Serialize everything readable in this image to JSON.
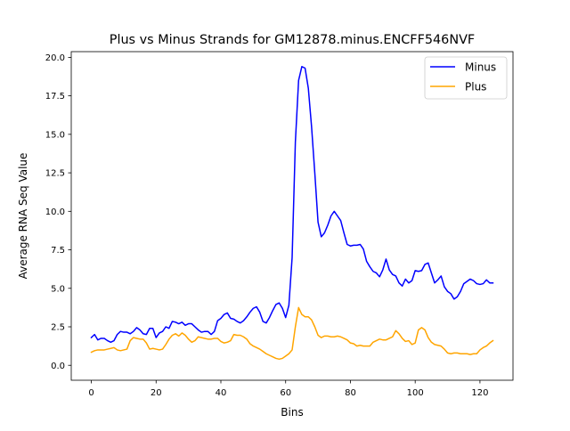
{
  "chart_data": {
    "type": "line",
    "title": "Plus vs Minus Strands for GM12878.minus.ENCFF546NVF",
    "xlabel": "Bins",
    "ylabel": "Average RNA Seq Value",
    "xlim": [
      -6.2,
      130.2
    ],
    "ylim": [
      -0.97,
      20.37
    ],
    "x_ticks": [
      0,
      20,
      40,
      60,
      80,
      100,
      120
    ],
    "y_ticks": [
      0.0,
      2.5,
      5.0,
      7.5,
      10.0,
      12.5,
      15.0,
      17.5,
      20.0
    ],
    "y_tick_labels": [
      "0.0",
      "2.5",
      "5.0",
      "7.5",
      "10.0",
      "12.5",
      "15.0",
      "17.5",
      "20.0"
    ],
    "grid": false,
    "legend_position": "top-right",
    "x": [
      0,
      1,
      2,
      3,
      4,
      5,
      6,
      7,
      8,
      9,
      10,
      11,
      12,
      13,
      14,
      15,
      16,
      17,
      18,
      19,
      20,
      21,
      22,
      23,
      24,
      25,
      26,
      27,
      28,
      29,
      30,
      31,
      32,
      33,
      34,
      35,
      36,
      37,
      38,
      39,
      40,
      41,
      42,
      43,
      44,
      45,
      46,
      47,
      48,
      49,
      50,
      51,
      52,
      53,
      54,
      55,
      56,
      57,
      58,
      59,
      60,
      61,
      62,
      63,
      64,
      65,
      66,
      67,
      68,
      69,
      70,
      71,
      72,
      73,
      74,
      75,
      76,
      77,
      78,
      79,
      80,
      81,
      82,
      83,
      84,
      85,
      86,
      87,
      88,
      89,
      90,
      91,
      92,
      93,
      94,
      95,
      96,
      97,
      98,
      99,
      100,
      101,
      102,
      103,
      104,
      105,
      106,
      107,
      108,
      109,
      110,
      111,
      112,
      113,
      114,
      115,
      116,
      117,
      118,
      119,
      120,
      121,
      122,
      123,
      124
    ],
    "series": [
      {
        "name": "Minus",
        "color": "#0000ff",
        "values": [
          1.8,
          2.0,
          1.65,
          1.75,
          1.75,
          1.6,
          1.5,
          1.6,
          2.0,
          2.2,
          2.15,
          2.15,
          2.05,
          2.2,
          2.45,
          2.3,
          2.05,
          2.0,
          2.4,
          2.4,
          1.8,
          2.1,
          2.2,
          2.5,
          2.4,
          2.85,
          2.8,
          2.7,
          2.8,
          2.6,
          2.7,
          2.7,
          2.5,
          2.3,
          2.15,
          2.2,
          2.2,
          2.0,
          2.2,
          2.9,
          3.05,
          3.3,
          3.4,
          3.05,
          3.0,
          2.85,
          2.75,
          2.9,
          3.15,
          3.45,
          3.7,
          3.8,
          3.45,
          2.85,
          2.75,
          3.1,
          3.55,
          3.95,
          4.05,
          3.7,
          3.1,
          3.9,
          7.0,
          14.5,
          18.5,
          19.4,
          19.3,
          18.0,
          15.5,
          12.5,
          9.3,
          8.35,
          8.6,
          9.1,
          9.7,
          10.0,
          9.7,
          9.4,
          8.6,
          7.85,
          7.75,
          7.8,
          7.8,
          7.85,
          7.55,
          6.75,
          6.4,
          6.1,
          6.0,
          5.75,
          6.2,
          6.9,
          6.2,
          5.9,
          5.8,
          5.35,
          5.15,
          5.6,
          5.35,
          5.5,
          6.15,
          6.1,
          6.15,
          6.55,
          6.65,
          6.0,
          5.35,
          5.55,
          5.8,
          5.1,
          4.8,
          4.65,
          4.3,
          4.45,
          4.8,
          5.3,
          5.45,
          5.6,
          5.5,
          5.3,
          5.25,
          5.3,
          5.55,
          5.35,
          5.35
        ]
      },
      {
        "name": "Plus",
        "color": "#ffa500",
        "values": [
          0.85,
          0.95,
          1.0,
          1.0,
          1.0,
          1.05,
          1.1,
          1.15,
          1.0,
          0.95,
          1.0,
          1.05,
          1.6,
          1.8,
          1.75,
          1.7,
          1.7,
          1.45,
          1.05,
          1.1,
          1.05,
          1.0,
          1.05,
          1.35,
          1.7,
          1.95,
          2.05,
          1.9,
          2.1,
          1.95,
          1.7,
          1.5,
          1.6,
          1.85,
          1.8,
          1.75,
          1.7,
          1.7,
          1.75,
          1.75,
          1.55,
          1.45,
          1.5,
          1.6,
          2.0,
          1.95,
          1.95,
          1.85,
          1.7,
          1.4,
          1.25,
          1.15,
          1.05,
          0.9,
          0.75,
          0.65,
          0.55,
          0.45,
          0.4,
          0.45,
          0.6,
          0.75,
          1.0,
          2.5,
          3.75,
          3.3,
          3.15,
          3.15,
          2.95,
          2.5,
          1.95,
          1.8,
          1.9,
          1.9,
          1.85,
          1.85,
          1.9,
          1.85,
          1.75,
          1.65,
          1.45,
          1.4,
          1.25,
          1.3,
          1.25,
          1.25,
          1.25,
          1.5,
          1.6,
          1.7,
          1.65,
          1.65,
          1.75,
          1.85,
          2.25,
          2.05,
          1.75,
          1.55,
          1.6,
          1.35,
          1.45,
          2.3,
          2.45,
          2.3,
          1.8,
          1.5,
          1.35,
          1.3,
          1.25,
          1.05,
          0.8,
          0.75,
          0.8,
          0.8,
          0.75,
          0.75,
          0.75,
          0.7,
          0.75,
          0.75,
          1.0,
          1.15,
          1.25,
          1.45,
          1.6
        ]
      }
    ]
  }
}
